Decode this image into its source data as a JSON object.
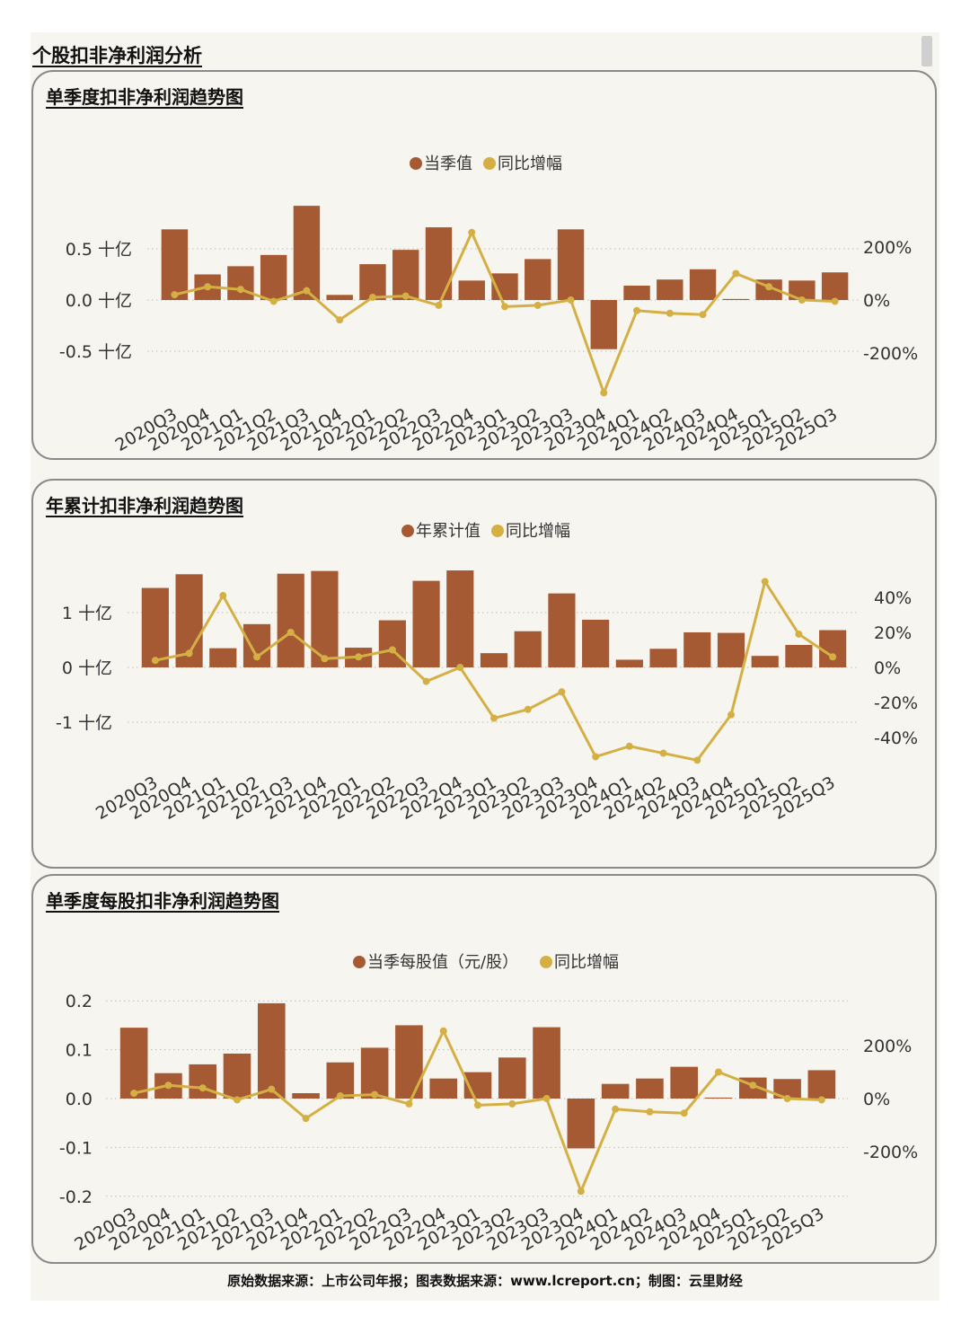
{
  "page": {
    "title": "个股扣非净利润分析",
    "footer": "原始数据来源：上市公司年报；图表数据来源：www.lcreport.cn；制图：云里财经",
    "colors": {
      "bar": "#a65a33",
      "line": "#d4b044",
      "background": "#f7f5ef",
      "border": "#8a8a8a",
      "grid": "#bdbdbd"
    }
  },
  "chart_data": [
    {
      "type": "bar",
      "title": "单季度扣非净利润趋势图",
      "categories": [
        "2020Q3",
        "2020Q4",
        "2021Q1",
        "2021Q2",
        "2021Q3",
        "2021Q4",
        "2022Q1",
        "2022Q2",
        "2022Q3",
        "2022Q4",
        "2023Q1",
        "2023Q2",
        "2023Q3",
        "2023Q4",
        "2024Q1",
        "2024Q2",
        "2024Q3",
        "2024Q4",
        "2025Q1",
        "2025Q2",
        "2025Q3"
      ],
      "series": [
        {
          "name": "当季值",
          "type": "bar",
          "axis": "left",
          "values": [
            0.69,
            0.25,
            0.33,
            0.44,
            0.92,
            0.05,
            0.35,
            0.49,
            0.71,
            0.19,
            0.26,
            0.4,
            0.69,
            -0.48,
            0.14,
            0.2,
            0.3,
            0.01,
            0.2,
            0.19,
            0.27
          ]
        },
        {
          "name": "同比增幅",
          "type": "line",
          "axis": "right",
          "values": [
            20,
            50,
            40,
            -5,
            35,
            -75,
            10,
            15,
            -20,
            255,
            -25,
            -20,
            0,
            -350,
            -40,
            -50,
            -55,
            100,
            50,
            0,
            -5
          ]
        }
      ],
      "left_axis": {
        "ticks": [
          0.5,
          0.0,
          -0.5
        ],
        "tick_labels": [
          "0.5 十亿",
          "0.0 十亿",
          "-0.5 十亿"
        ],
        "range": [
          -1.1,
          1.1
        ]
      },
      "right_axis": {
        "ticks": [
          200,
          0,
          -200
        ],
        "tick_labels": [
          "200%",
          "0%",
          "-200%"
        ],
        "range": [
          -400,
          400
        ]
      },
      "grid": true,
      "legend_position": "top-center"
    },
    {
      "type": "bar",
      "title": "年累计扣非净利润趋势图",
      "categories": [
        "2020Q3",
        "2020Q4",
        "2021Q1",
        "2021Q2",
        "2021Q3",
        "2021Q4",
        "2022Q1",
        "2022Q2",
        "2022Q3",
        "2022Q4",
        "2023Q1",
        "2023Q2",
        "2023Q3",
        "2023Q4",
        "2024Q1",
        "2024Q2",
        "2024Q3",
        "2024Q4",
        "2025Q1",
        "2025Q2",
        "2025Q3"
      ],
      "series": [
        {
          "name": "年累计值",
          "type": "bar",
          "axis": "left",
          "values": [
            1.45,
            1.7,
            0.35,
            0.79,
            1.71,
            1.76,
            0.36,
            0.86,
            1.58,
            1.77,
            0.26,
            0.66,
            1.35,
            0.87,
            0.14,
            0.34,
            0.64,
            0.63,
            0.21,
            0.41,
            0.68
          ]
        },
        {
          "name": "同比增幅",
          "type": "line",
          "axis": "right",
          "values": [
            4,
            8,
            41,
            6,
            20,
            5,
            6,
            10,
            -8,
            0,
            -29,
            -24,
            -14,
            -51,
            -45,
            -49,
            -53,
            -27,
            49,
            19,
            6
          ]
        }
      ],
      "left_axis": {
        "ticks": [
          1,
          0,
          -1
        ],
        "tick_labels": [
          "1 十亿",
          "0 十亿",
          "-1 十亿"
        ],
        "range": [
          -2.2,
          2.2
        ]
      },
      "right_axis": {
        "ticks": [
          40,
          20,
          0,
          -20,
          -40
        ],
        "tick_labels": [
          "40%",
          "20%",
          "0%",
          "-20%",
          "-40%"
        ],
        "range": [
          -70,
          70
        ]
      },
      "grid": true,
      "legend_position": "top-center"
    },
    {
      "type": "bar",
      "title": "单季度每股扣非净利润趋势图",
      "categories": [
        "2020Q3",
        "2020Q4",
        "2021Q1",
        "2021Q2",
        "2021Q3",
        "2021Q4",
        "2022Q1",
        "2022Q2",
        "2022Q3",
        "2022Q4",
        "2023Q1",
        "2023Q2",
        "2023Q3",
        "2023Q4",
        "2024Q1",
        "2024Q2",
        "2024Q3",
        "2024Q4",
        "2025Q1",
        "2025Q2",
        "2025Q3"
      ],
      "series": [
        {
          "name": "当季每股值（元/股）",
          "type": "bar",
          "axis": "left",
          "values": [
            0.145,
            0.052,
            0.07,
            0.092,
            0.195,
            0.011,
            0.074,
            0.104,
            0.15,
            0.041,
            0.054,
            0.084,
            0.146,
            -0.102,
            0.03,
            0.041,
            0.065,
            0.002,
            0.043,
            0.04,
            0.058
          ]
        },
        {
          "name": "同比增幅",
          "type": "line",
          "axis": "right",
          "values": [
            20,
            50,
            40,
            -5,
            35,
            -75,
            10,
            15,
            -20,
            255,
            -25,
            -20,
            0,
            -350,
            -40,
            -50,
            -55,
            100,
            50,
            0,
            -5
          ]
        }
      ],
      "left_axis": {
        "ticks": [
          0.2,
          0.1,
          0.0,
          -0.1,
          -0.2
        ],
        "tick_labels": [
          "0.2",
          "0.1",
          "0.0",
          "-0.1",
          "-0.2"
        ],
        "range": [
          -0.2,
          0.2
        ]
      },
      "right_axis": {
        "ticks": [
          200,
          0,
          -200
        ],
        "tick_labels": [
          "200%",
          "0%",
          "-200%"
        ],
        "range": [
          -370,
          370
        ]
      },
      "grid": true,
      "legend_position": "top-center"
    }
  ]
}
